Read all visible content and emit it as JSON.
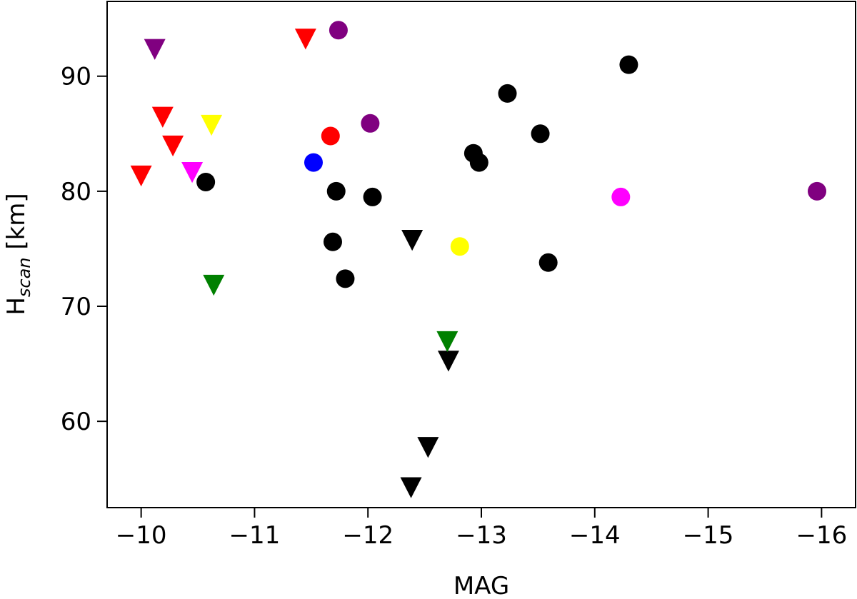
{
  "chart_data": {
    "type": "scatter",
    "xlabel": "MAG",
    "ylabel": {
      "main": "H",
      "sub": "scan",
      "unit": " [km]"
    },
    "xlim": [
      -9.7,
      -16.3
    ],
    "ylim": [
      52.5,
      96.5
    ],
    "x_inverted": true,
    "x_ticks": [
      -10,
      -11,
      -12,
      -13,
      -14,
      -15,
      -16
    ],
    "x_tick_labels": [
      "−10",
      "−11",
      "−12",
      "−13",
      "−14",
      "−15",
      "−16"
    ],
    "y_ticks": [
      60,
      70,
      80,
      90
    ],
    "y_tick_labels": [
      "60",
      "70",
      "80",
      "90"
    ],
    "grid": false,
    "colors": {
      "black": "#000000",
      "red": "#ff0000",
      "purple": "#800080",
      "yellow": "#ffff00",
      "magenta": "#ff00ff",
      "green": "#008000",
      "blue": "#0000ff"
    },
    "series": [
      {
        "marker": "circle",
        "color": "black",
        "points": [
          {
            "x": -10.57,
            "y": 80.8
          },
          {
            "x": -11.72,
            "y": 80.0
          },
          {
            "x": -11.69,
            "y": 75.6
          },
          {
            "x": -11.8,
            "y": 72.4
          },
          {
            "x": -12.04,
            "y": 79.5
          },
          {
            "x": -12.93,
            "y": 83.3
          },
          {
            "x": -12.98,
            "y": 82.5
          },
          {
            "x": -13.23,
            "y": 88.5
          },
          {
            "x": -13.52,
            "y": 85.0
          },
          {
            "x": -13.59,
            "y": 73.8
          },
          {
            "x": -14.3,
            "y": 91.0
          }
        ]
      },
      {
        "marker": "circle",
        "color": "purple",
        "points": [
          {
            "x": -11.74,
            "y": 94.0
          },
          {
            "x": -12.02,
            "y": 85.9
          },
          {
            "x": -15.96,
            "y": 80.0
          }
        ]
      },
      {
        "marker": "circle",
        "color": "red",
        "points": [
          {
            "x": -11.67,
            "y": 84.8
          }
        ]
      },
      {
        "marker": "circle",
        "color": "blue",
        "points": [
          {
            "x": -11.52,
            "y": 82.5
          }
        ]
      },
      {
        "marker": "circle",
        "color": "yellow",
        "points": [
          {
            "x": -12.81,
            "y": 75.2
          }
        ]
      },
      {
        "marker": "circle",
        "color": "magenta",
        "points": [
          {
            "x": -14.23,
            "y": 79.5
          }
        ]
      },
      {
        "marker": "triangle-down",
        "color": "black",
        "points": [
          {
            "x": -12.39,
            "y": 75.8
          },
          {
            "x": -12.71,
            "y": 65.3
          },
          {
            "x": -12.53,
            "y": 57.8
          },
          {
            "x": -12.38,
            "y": 54.3
          }
        ]
      },
      {
        "marker": "triangle-down",
        "color": "red",
        "points": [
          {
            "x": -11.45,
            "y": 93.3
          },
          {
            "x": -10.19,
            "y": 86.5
          },
          {
            "x": -10.28,
            "y": 84.0
          },
          {
            "x": -10.0,
            "y": 81.4
          }
        ]
      },
      {
        "marker": "triangle-down",
        "color": "purple",
        "points": [
          {
            "x": -10.12,
            "y": 92.4
          }
        ]
      },
      {
        "marker": "triangle-down",
        "color": "yellow",
        "points": [
          {
            "x": -10.62,
            "y": 85.8
          }
        ]
      },
      {
        "marker": "triangle-down",
        "color": "magenta",
        "points": [
          {
            "x": -10.45,
            "y": 81.7
          }
        ]
      },
      {
        "marker": "triangle-down",
        "color": "green",
        "points": [
          {
            "x": -10.64,
            "y": 71.9
          },
          {
            "x": -12.7,
            "y": 67.0
          }
        ]
      }
    ]
  }
}
